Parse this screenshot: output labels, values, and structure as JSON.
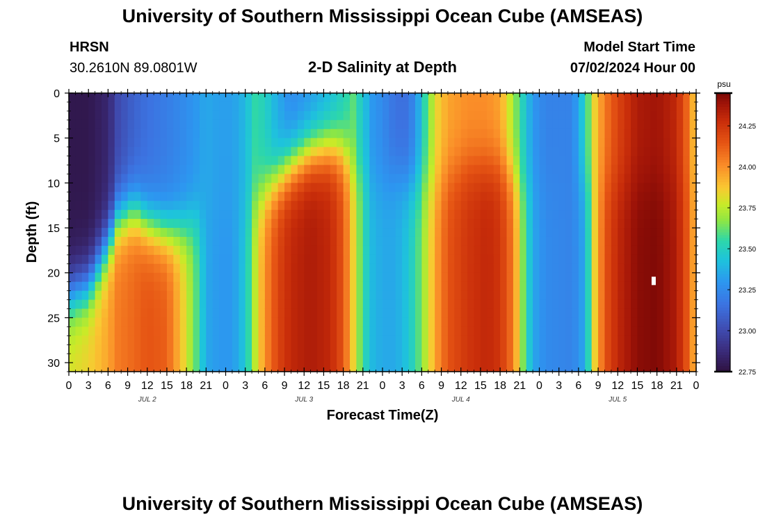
{
  "page": {
    "title": "University of Southern Mississippi Ocean Cube (AMSEAS)",
    "footer_title": "University of Southern Mississippi Ocean Cube (AMSEAS)"
  },
  "header": {
    "station": "HRSN",
    "coords": "30.2610N  89.0801W",
    "subtitle": "2-D Salinity at Depth",
    "model_start_label": "Model Start Time",
    "model_start_value": "07/02/2024 Hour 00"
  },
  "chart_data": {
    "type": "heatmap",
    "title": "2-D Salinity at Depth",
    "xlabel": "Forecast Time(Z)",
    "ylabel": "Depth (ft)",
    "x_range_hours": [
      0,
      96
    ],
    "ylim": [
      0,
      31
    ],
    "y_ticks": [
      0,
      5,
      10,
      15,
      20,
      25,
      30
    ],
    "x_tick_labels": [
      "0",
      "3",
      "6",
      "9",
      "12",
      "15",
      "18",
      "21",
      "0",
      "3",
      "6",
      "9",
      "12",
      "15",
      "18",
      "21",
      "0",
      "3",
      "6",
      "9",
      "12",
      "15",
      "18",
      "21",
      "0",
      "3",
      "6",
      "9",
      "12",
      "15",
      "18",
      "21",
      "0"
    ],
    "day_labels": [
      "JUL 2",
      "JUL 3",
      "JUL 4",
      "JUL 5"
    ],
    "colorbar": {
      "unit": "psu",
      "min": 22.75,
      "max": 24.45,
      "ticks": [
        24.25,
        24.0,
        23.75,
        23.5,
        23.25,
        23.0,
        22.75
      ],
      "tick_labels": [
        "24.25",
        "24.00",
        "23.75",
        "23.50",
        "23.25",
        "23.00",
        "22.75"
      ]
    },
    "grid": false,
    "legend": "right",
    "salinity_profiles": [
      {
        "hour": 0,
        "surface": 22.78,
        "deep": 23.8,
        "transition_depth": 22.5
      },
      {
        "hour": 3,
        "surface": 22.78,
        "deep": 23.85,
        "transition_depth": 21.5
      },
      {
        "hour": 6,
        "surface": 22.85,
        "deep": 23.95,
        "transition_depth": 17
      },
      {
        "hour": 7.5,
        "surface": 23.0,
        "deep": 24.05,
        "transition_depth": 14
      },
      {
        "hour": 10,
        "surface": 23.1,
        "deep": 24.1,
        "transition_depth": 13
      },
      {
        "hour": 12,
        "surface": 23.15,
        "deep": 24.15,
        "transition_depth": 14.5
      },
      {
        "hour": 15,
        "surface": 23.2,
        "deep": 24.12,
        "transition_depth": 15.5
      },
      {
        "hour": 17.5,
        "surface": 23.25,
        "deep": 23.85,
        "transition_depth": 15
      },
      {
        "hour": 19.5,
        "surface": 23.3,
        "deep": 23.6,
        "transition_depth": 14
      },
      {
        "hour": 21,
        "surface": 23.35,
        "deep": 23.35,
        "transition_depth": 14
      },
      {
        "hour": 23,
        "surface": 23.32,
        "deep": 23.3,
        "transition_depth": 14
      },
      {
        "hour": 25,
        "surface": 23.32,
        "deep": 23.3,
        "transition_depth": 14
      },
      {
        "hour": 27,
        "surface": 23.4,
        "deep": 23.45,
        "transition_depth": 14
      },
      {
        "hour": 28.5,
        "surface": 23.55,
        "deep": 23.75,
        "transition_depth": 12
      },
      {
        "hour": 30,
        "surface": 23.5,
        "deep": 24.0,
        "transition_depth": 11
      },
      {
        "hour": 32,
        "surface": 23.35,
        "deep": 24.2,
        "transition_depth": 9.5
      },
      {
        "hour": 34,
        "surface": 23.25,
        "deep": 24.3,
        "transition_depth": 8
      },
      {
        "hour": 37,
        "surface": 23.3,
        "deep": 24.35,
        "transition_depth": 6.5
      },
      {
        "hour": 40,
        "surface": 23.4,
        "deep": 24.3,
        "transition_depth": 6
      },
      {
        "hour": 42,
        "surface": 23.5,
        "deep": 24.15,
        "transition_depth": 6.5
      },
      {
        "hour": 43.5,
        "surface": 23.6,
        "deep": 23.85,
        "transition_depth": 8
      },
      {
        "hour": 45,
        "surface": 23.45,
        "deep": 23.55,
        "transition_depth": 9
      },
      {
        "hour": 46.5,
        "surface": 23.3,
        "deep": 23.4,
        "transition_depth": 10
      },
      {
        "hour": 48,
        "surface": 23.25,
        "deep": 23.35,
        "transition_depth": 10
      },
      {
        "hour": 50,
        "surface": 23.15,
        "deep": 23.35,
        "transition_depth": 9
      },
      {
        "hour": 52,
        "surface": 23.15,
        "deep": 23.45,
        "transition_depth": 10
      },
      {
        "hour": 53.5,
        "surface": 23.35,
        "deep": 23.6,
        "transition_depth": 10
      },
      {
        "hour": 55,
        "surface": 23.65,
        "deep": 23.8,
        "transition_depth": 10
      },
      {
        "hour": 56.5,
        "surface": 23.85,
        "deep": 24.0,
        "transition_depth": 10
      },
      {
        "hour": 58,
        "surface": 23.95,
        "deep": 24.15,
        "transition_depth": 9
      },
      {
        "hour": 61,
        "surface": 24.0,
        "deep": 24.25,
        "transition_depth": 8
      },
      {
        "hour": 64,
        "surface": 24.0,
        "deep": 24.3,
        "transition_depth": 8
      },
      {
        "hour": 66,
        "surface": 23.95,
        "deep": 24.25,
        "transition_depth": 8
      },
      {
        "hour": 68,
        "surface": 23.7,
        "deep": 24.05,
        "transition_depth": 9
      },
      {
        "hour": 69.5,
        "surface": 23.5,
        "deep": 23.65,
        "transition_depth": 10
      },
      {
        "hour": 71,
        "surface": 23.3,
        "deep": 23.35,
        "transition_depth": 10
      },
      {
        "hour": 73,
        "surface": 23.22,
        "deep": 23.25,
        "transition_depth": 10
      },
      {
        "hour": 77,
        "surface": 23.22,
        "deep": 23.22,
        "transition_depth": 10
      },
      {
        "hour": 79,
        "surface": 23.5,
        "deep": 23.35,
        "transition_depth": 10
      },
      {
        "hour": 80.5,
        "surface": 23.85,
        "deep": 23.85,
        "transition_depth": 10
      },
      {
        "hour": 82,
        "surface": 24.05,
        "deep": 24.15,
        "transition_depth": 10
      },
      {
        "hour": 84,
        "surface": 24.2,
        "deep": 24.3,
        "transition_depth": 10
      },
      {
        "hour": 87,
        "surface": 24.35,
        "deep": 24.42,
        "transition_depth": 10
      },
      {
        "hour": 90,
        "surface": 24.38,
        "deep": 24.44,
        "transition_depth": 10
      },
      {
        "hour": 93,
        "surface": 24.3,
        "deep": 24.35,
        "transition_depth": 10
      },
      {
        "hour": 95,
        "surface": 24.05,
        "deep": 24.1,
        "transition_depth": 10
      },
      {
        "hour": 96,
        "surface": 23.8,
        "deep": 23.85,
        "transition_depth": 10
      }
    ],
    "annotations": [
      {
        "type": "marker",
        "hour": 89.5,
        "depth": 20.9,
        "color": "#ffffff"
      }
    ]
  }
}
